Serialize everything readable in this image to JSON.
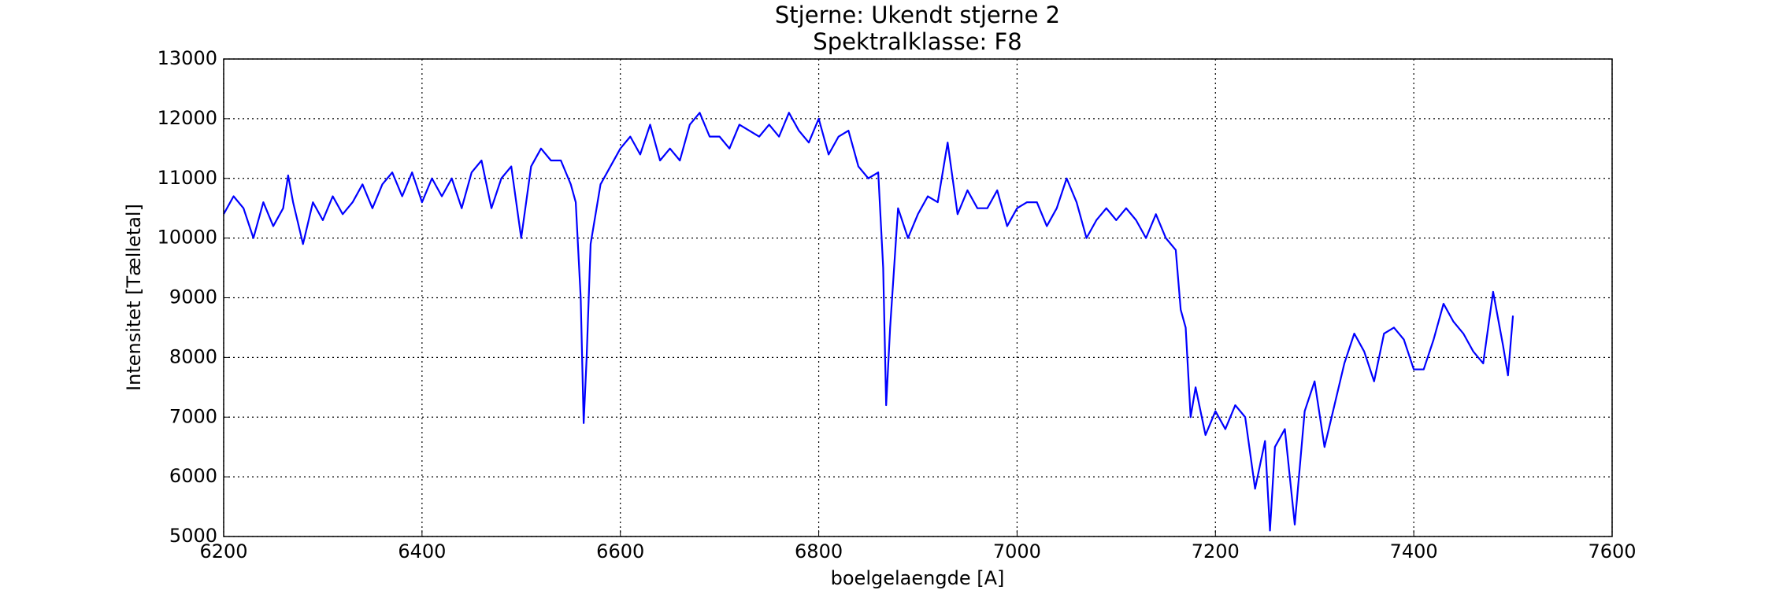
{
  "chart_data": {
    "type": "line",
    "title": "Stjerne: Ukendt stjerne 2",
    "subtitle": "Spektralklasse: F8",
    "x_label": "boelgelaengde [A]",
    "y_label": "Intensitet [Tælletal]",
    "xlim": [
      6200,
      7600
    ],
    "xticks": [
      6200,
      6400,
      6600,
      6800,
      7000,
      7200,
      7400,
      7600
    ],
    "ylim": [
      5000,
      13000
    ],
    "yticks": [
      5000,
      6000,
      7000,
      8000,
      9000,
      10000,
      11000,
      12000,
      13000
    ],
    "grid": true,
    "x": [
      6200,
      6210,
      6220,
      6230,
      6240,
      6250,
      6260,
      6265,
      6270,
      6280,
      6290,
      6300,
      6310,
      6320,
      6330,
      6340,
      6350,
      6360,
      6370,
      6380,
      6390,
      6400,
      6410,
      6420,
      6430,
      6440,
      6450,
      6460,
      6470,
      6480,
      6490,
      6500,
      6510,
      6520,
      6530,
      6540,
      6550,
      6555,
      6560,
      6563,
      6566,
      6570,
      6580,
      6590,
      6600,
      6610,
      6620,
      6630,
      6640,
      6650,
      6660,
      6670,
      6680,
      6690,
      6700,
      6710,
      6720,
      6730,
      6740,
      6750,
      6760,
      6770,
      6780,
      6790,
      6800,
      6810,
      6820,
      6830,
      6840,
      6850,
      6860,
      6865,
      6868,
      6872,
      6880,
      6890,
      6900,
      6910,
      6920,
      6930,
      6940,
      6950,
      6960,
      6970,
      6980,
      6990,
      7000,
      7010,
      7020,
      7030,
      7040,
      7050,
      7060,
      7070,
      7080,
      7090,
      7100,
      7110,
      7120,
      7130,
      7140,
      7150,
      7160,
      7165,
      7170,
      7175,
      7180,
      7190,
      7200,
      7210,
      7220,
      7230,
      7240,
      7250,
      7255,
      7260,
      7270,
      7280,
      7290,
      7300,
      7310,
      7320,
      7330,
      7340,
      7350,
      7360,
      7370,
      7380,
      7390,
      7400,
      7410,
      7420,
      7430,
      7440,
      7450,
      7460,
      7470,
      7480,
      7490,
      7495,
      7500
    ],
    "series": [
      {
        "color": "#0000ff",
        "values": [
          10400,
          10700,
          10500,
          10000,
          10600,
          10200,
          10500,
          11050,
          10600,
          9900,
          10600,
          10300,
          10700,
          10400,
          10600,
          10900,
          10500,
          10900,
          11100,
          10700,
          11100,
          10600,
          11000,
          10700,
          11000,
          10500,
          11100,
          11300,
          10500,
          11000,
          11200,
          10000,
          11200,
          11500,
          11300,
          11300,
          10900,
          10600,
          9000,
          6900,
          8000,
          9900,
          10900,
          11200,
          11500,
          11700,
          11400,
          11900,
          11300,
          11500,
          11300,
          11900,
          12100,
          11700,
          11700,
          11500,
          11900,
          11800,
          11700,
          11900,
          11700,
          12100,
          11800,
          11600,
          12000,
          11400,
          11700,
          11800,
          11200,
          11000,
          11100,
          9500,
          7200,
          8500,
          10500,
          10000,
          10400,
          10700,
          10600,
          11600,
          10400,
          10800,
          10500,
          10500,
          10800,
          10200,
          10500,
          10600,
          10600,
          10200,
          10500,
          11000,
          10600,
          10000,
          10300,
          10500,
          10300,
          10500,
          10300,
          10000,
          10400,
          10000,
          9800,
          8800,
          8500,
          7000,
          7500,
          6700,
          7100,
          6800,
          7200,
          7000,
          5800,
          6600,
          5100,
          6500,
          6800,
          5200,
          7100,
          7600,
          6500,
          7200,
          7900,
          8400,
          8100,
          7600,
          8400,
          8500,
          8300,
          7800,
          7800,
          8300,
          8900,
          8600,
          8400,
          8100,
          7900,
          9100,
          8200,
          7700,
          8700
        ]
      }
    ]
  }
}
